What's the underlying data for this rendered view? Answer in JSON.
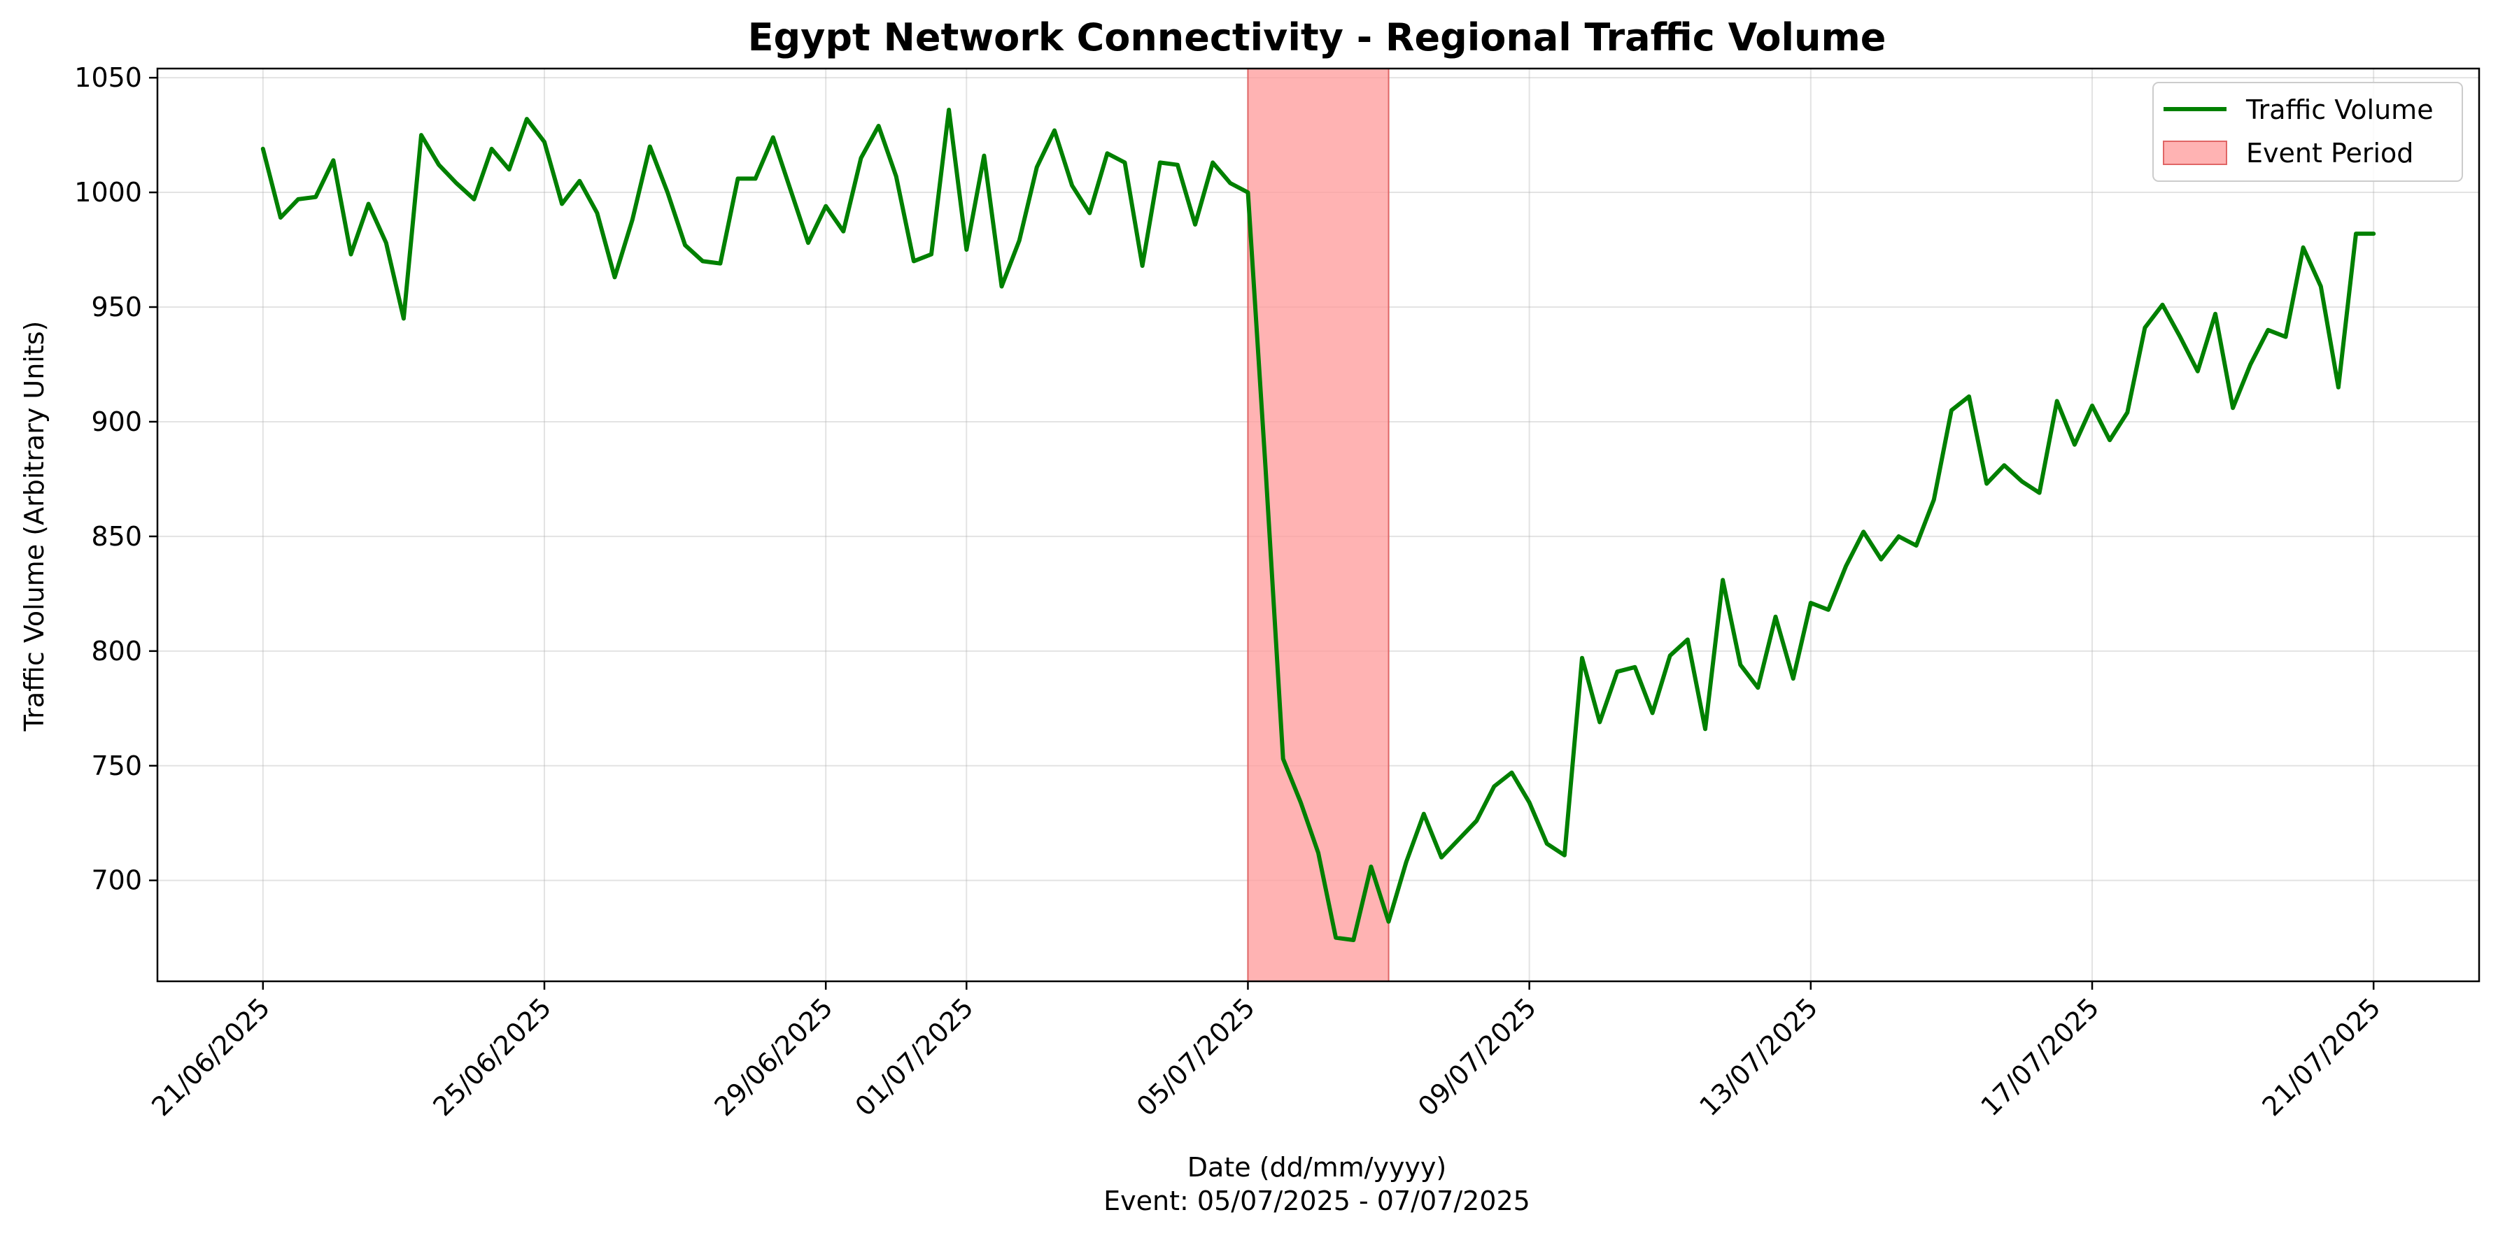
{
  "chart_data": {
    "type": "line",
    "title": "Egypt Network Connectivity - Regional Traffic Volume",
    "xlabel": "Date (dd/mm/yyyy)",
    "xlabel_note": "Event: 05/07/2025 - 07/07/2025",
    "ylabel": "Traffic Volume (Arbitrary Units)",
    "ylim": [
      656,
      1054
    ],
    "xlim": [
      "2025-06-19T12:00",
      "2025-07-22T12:00"
    ],
    "y_ticks": [
      700,
      750,
      800,
      850,
      900,
      950,
      1000,
      1050
    ],
    "x_ticks": [
      {
        "date": "2025-06-21",
        "label": "21/06/2025"
      },
      {
        "date": "2025-06-25",
        "label": "25/06/2025"
      },
      {
        "date": "2025-06-29",
        "label": "29/06/2025"
      },
      {
        "date": "2025-07-01",
        "label": "01/07/2025"
      },
      {
        "date": "2025-07-05",
        "label": "05/07/2025"
      },
      {
        "date": "2025-07-09",
        "label": "09/07/2025"
      },
      {
        "date": "2025-07-13",
        "label": "13/07/2025"
      },
      {
        "date": "2025-07-17",
        "label": "17/07/2025"
      },
      {
        "date": "2025-07-21",
        "label": "21/07/2025"
      }
    ],
    "grid": true,
    "legend_position": "top-right",
    "event_period": {
      "start": "2025-07-05",
      "end": "2025-07-07",
      "name": "Event Period",
      "color": "#ff9999"
    },
    "series": [
      {
        "name": "Traffic Volume",
        "color": "#008000",
        "points": [
          [
            "2025-06-21T00:00",
            1019
          ],
          [
            "2025-06-21T06:00",
            989
          ],
          [
            "2025-06-21T12:00",
            997
          ],
          [
            "2025-06-21T18:00",
            998
          ],
          [
            "2025-06-22T00:00",
            1014
          ],
          [
            "2025-06-22T06:00",
            973
          ],
          [
            "2025-06-22T12:00",
            995
          ],
          [
            "2025-06-22T18:00",
            978
          ],
          [
            "2025-06-23T00:00",
            945
          ],
          [
            "2025-06-23T06:00",
            1025
          ],
          [
            "2025-06-23T12:00",
            1012
          ],
          [
            "2025-06-23T18:00",
            1004
          ],
          [
            "2025-06-24T00:00",
            997
          ],
          [
            "2025-06-24T06:00",
            1019
          ],
          [
            "2025-06-24T12:00",
            1010
          ],
          [
            "2025-06-24T18:00",
            1032
          ],
          [
            "2025-06-25T00:00",
            1022
          ],
          [
            "2025-06-25T06:00",
            995
          ],
          [
            "2025-06-25T12:00",
            1005
          ],
          [
            "2025-06-25T18:00",
            991
          ],
          [
            "2025-06-26T00:00",
            963
          ],
          [
            "2025-06-26T06:00",
            988
          ],
          [
            "2025-06-26T12:00",
            1020
          ],
          [
            "2025-06-26T18:00",
            1000
          ],
          [
            "2025-06-27T00:00",
            977
          ],
          [
            "2025-06-27T06:00",
            970
          ],
          [
            "2025-06-27T12:00",
            969
          ],
          [
            "2025-06-27T18:00",
            1006
          ],
          [
            "2025-06-28T00:00",
            1006
          ],
          [
            "2025-06-28T06:00",
            1024
          ],
          [
            "2025-06-28T12:00",
            1001
          ],
          [
            "2025-06-28T18:00",
            978
          ],
          [
            "2025-06-29T00:00",
            994
          ],
          [
            "2025-06-29T06:00",
            983
          ],
          [
            "2025-06-29T12:00",
            1015
          ],
          [
            "2025-06-29T18:00",
            1029
          ],
          [
            "2025-06-30T00:00",
            1007
          ],
          [
            "2025-06-30T06:00",
            970
          ],
          [
            "2025-06-30T12:00",
            973
          ],
          [
            "2025-06-30T18:00",
            1036
          ],
          [
            "2025-07-01T00:00",
            975
          ],
          [
            "2025-07-01T06:00",
            1016
          ],
          [
            "2025-07-01T12:00",
            959
          ],
          [
            "2025-07-01T18:00",
            979
          ],
          [
            "2025-07-02T00:00",
            1011
          ],
          [
            "2025-07-02T06:00",
            1027
          ],
          [
            "2025-07-02T12:00",
            1003
          ],
          [
            "2025-07-02T18:00",
            991
          ],
          [
            "2025-07-03T00:00",
            1017
          ],
          [
            "2025-07-03T06:00",
            1013
          ],
          [
            "2025-07-03T12:00",
            968
          ],
          [
            "2025-07-03T18:00",
            1013
          ],
          [
            "2025-07-04T00:00",
            1012
          ],
          [
            "2025-07-04T06:00",
            986
          ],
          [
            "2025-07-04T12:00",
            1013
          ],
          [
            "2025-07-04T18:00",
            1004
          ],
          [
            "2025-07-05T00:00",
            1000
          ],
          [
            "2025-07-05T06:00",
            880
          ],
          [
            "2025-07-05T12:00",
            753
          ],
          [
            "2025-07-05T18:00",
            734
          ],
          [
            "2025-07-06T00:00",
            712
          ],
          [
            "2025-07-06T06:00",
            675
          ],
          [
            "2025-07-06T12:00",
            674
          ],
          [
            "2025-07-06T18:00",
            706
          ],
          [
            "2025-07-07T00:00",
            682
          ],
          [
            "2025-07-07T06:00",
            708
          ],
          [
            "2025-07-07T12:00",
            729
          ],
          [
            "2025-07-07T18:00",
            710
          ],
          [
            "2025-07-08T00:00",
            718
          ],
          [
            "2025-07-08T06:00",
            726
          ],
          [
            "2025-07-08T12:00",
            741
          ],
          [
            "2025-07-08T18:00",
            747
          ],
          [
            "2025-07-09T00:00",
            734
          ],
          [
            "2025-07-09T06:00",
            716
          ],
          [
            "2025-07-09T12:00",
            711
          ],
          [
            "2025-07-09T18:00",
            797
          ],
          [
            "2025-07-10T00:00",
            769
          ],
          [
            "2025-07-10T06:00",
            791
          ],
          [
            "2025-07-10T12:00",
            793
          ],
          [
            "2025-07-10T18:00",
            773
          ],
          [
            "2025-07-11T00:00",
            798
          ],
          [
            "2025-07-11T06:00",
            805
          ],
          [
            "2025-07-11T12:00",
            766
          ],
          [
            "2025-07-11T18:00",
            831
          ],
          [
            "2025-07-12T00:00",
            794
          ],
          [
            "2025-07-12T06:00",
            784
          ],
          [
            "2025-07-12T12:00",
            815
          ],
          [
            "2025-07-12T18:00",
            788
          ],
          [
            "2025-07-13T00:00",
            821
          ],
          [
            "2025-07-13T06:00",
            818
          ],
          [
            "2025-07-13T12:00",
            837
          ],
          [
            "2025-07-13T18:00",
            852
          ],
          [
            "2025-07-14T00:00",
            840
          ],
          [
            "2025-07-14T06:00",
            850
          ],
          [
            "2025-07-14T12:00",
            846
          ],
          [
            "2025-07-14T18:00",
            866
          ],
          [
            "2025-07-15T00:00",
            905
          ],
          [
            "2025-07-15T06:00",
            911
          ],
          [
            "2025-07-15T12:00",
            873
          ],
          [
            "2025-07-15T18:00",
            881
          ],
          [
            "2025-07-16T00:00",
            874
          ],
          [
            "2025-07-16T06:00",
            869
          ],
          [
            "2025-07-16T12:00",
            909
          ],
          [
            "2025-07-16T18:00",
            890
          ],
          [
            "2025-07-17T00:00",
            907
          ],
          [
            "2025-07-17T06:00",
            892
          ],
          [
            "2025-07-17T12:00",
            904
          ],
          [
            "2025-07-17T18:00",
            941
          ],
          [
            "2025-07-18T00:00",
            951
          ],
          [
            "2025-07-18T06:00",
            937
          ],
          [
            "2025-07-18T12:00",
            922
          ],
          [
            "2025-07-18T18:00",
            947
          ],
          [
            "2025-07-19T00:00",
            906
          ],
          [
            "2025-07-19T06:00",
            925
          ],
          [
            "2025-07-19T12:00",
            940
          ],
          [
            "2025-07-19T18:00",
            937
          ],
          [
            "2025-07-20T00:00",
            976
          ],
          [
            "2025-07-20T06:00",
            959
          ],
          [
            "2025-07-20T12:00",
            915
          ],
          [
            "2025-07-20T18:00",
            982
          ],
          [
            "2025-07-21T00:00",
            982
          ]
        ]
      }
    ]
  }
}
